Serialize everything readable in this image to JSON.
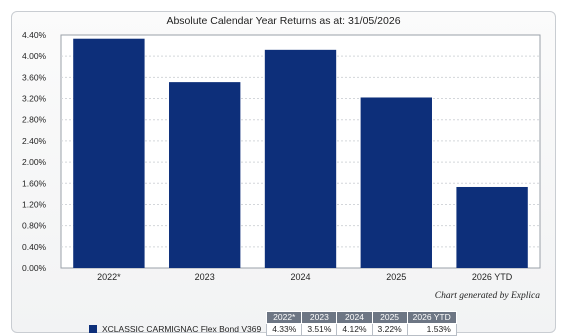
{
  "chart_data": {
    "type": "bar",
    "title": "Absolute Calendar Year Returns as at: 31/05/2026",
    "categories": [
      "2022*",
      "2023",
      "2024",
      "2025",
      "2026 YTD"
    ],
    "series": [
      {
        "name": "XCLASSIC CARMIGNAC Flex Bond V369",
        "values": [
          4.33,
          3.51,
          4.12,
          3.22,
          1.53
        ],
        "value_labels": [
          "4.33%",
          "3.51%",
          "4.12%",
          "3.22%",
          "1.53%"
        ],
        "color": "#0d2f7a"
      }
    ],
    "y_ticks": [
      0,
      0.4,
      0.8,
      1.2,
      1.6,
      2.0,
      2.4,
      2.8,
      3.2,
      3.6,
      4.0,
      4.4
    ],
    "y_tick_labels": [
      "0.00%",
      "0.40%",
      "0.80%",
      "1.20%",
      "1.60%",
      "2.00%",
      "2.40%",
      "2.80%",
      "3.20%",
      "3.60%",
      "4.00%",
      "4.40%"
    ],
    "ylim": [
      0,
      4.4
    ],
    "grid": true,
    "credit": "Chart generated by Explica"
  }
}
